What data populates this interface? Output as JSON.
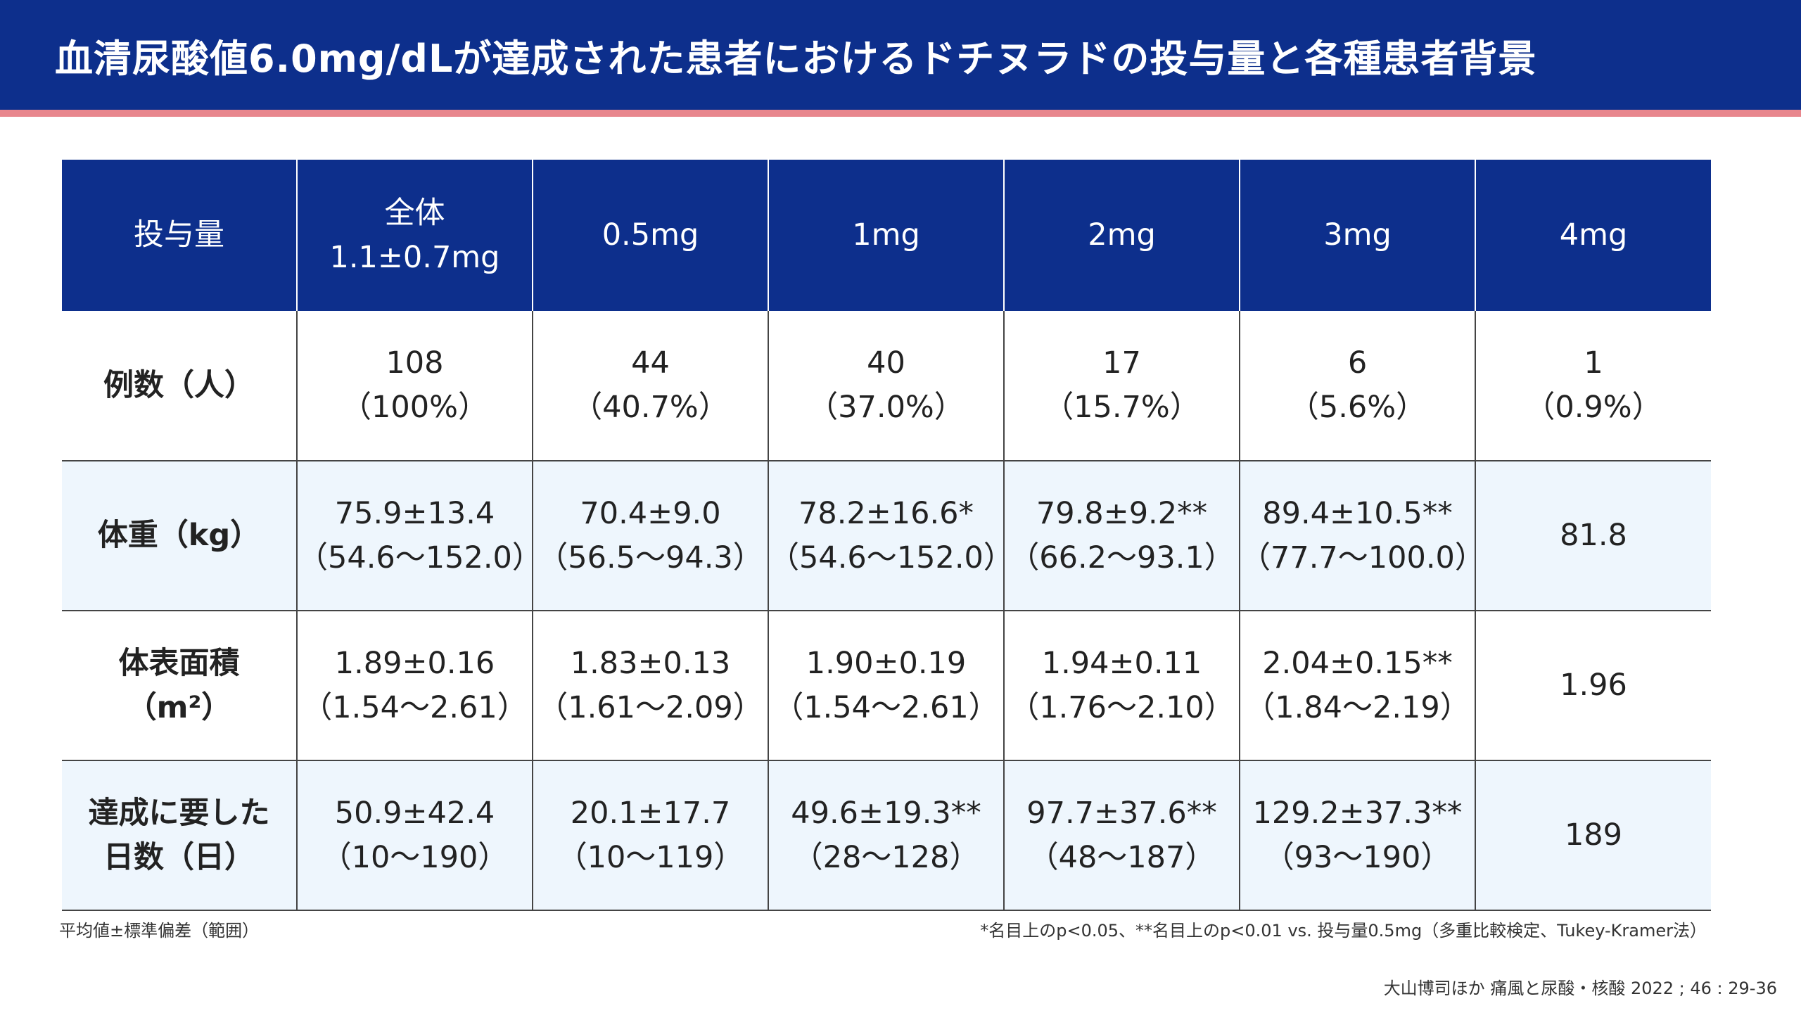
{
  "title": "血清尿酸値6.0mg/dLが達成された患者におけるドチヌラドの投与量と各種患者背景",
  "colors": {
    "header_bg": "#0d2f8c",
    "accent_rule": "#e8868d",
    "shaded_row_bg": "#eef6fd",
    "grid_line": "#444444"
  },
  "table": {
    "header": [
      {
        "line1": "投与量",
        "line2": ""
      },
      {
        "line1": "全体",
        "line2": "1.1±0.7mg"
      },
      {
        "line1": "0.5mg",
        "line2": ""
      },
      {
        "line1": "1mg",
        "line2": ""
      },
      {
        "line1": "2mg",
        "line2": ""
      },
      {
        "line1": "3mg",
        "line2": ""
      },
      {
        "line1": "4mg",
        "line2": ""
      }
    ],
    "rows": [
      {
        "label1": "例数（人）",
        "label2": "",
        "cells": [
          {
            "line1": "108",
            "line2": "（100%）"
          },
          {
            "line1": "44",
            "line2": "（40.7%）"
          },
          {
            "line1": "40",
            "line2": "（37.0%）"
          },
          {
            "line1": "17",
            "line2": "（15.7%）"
          },
          {
            "line1": "6",
            "line2": "（5.6%）"
          },
          {
            "line1": "1",
            "line2": "（0.9%）"
          }
        ]
      },
      {
        "label1": "体重（kg）",
        "label2": "",
        "cells": [
          {
            "line1": "75.9±13.4",
            "line2": "（54.6〜152.0）"
          },
          {
            "line1": "70.4±9.0",
            "line2": "（56.5〜94.3）"
          },
          {
            "line1": "78.2±16.6*",
            "line2": "（54.6〜152.0）"
          },
          {
            "line1": "79.8±9.2**",
            "line2": "（66.2〜93.1）"
          },
          {
            "line1": "89.4±10.5**",
            "line2": "（77.7〜100.0）"
          },
          {
            "line1": "81.8",
            "line2": ""
          }
        ]
      },
      {
        "label1": "体表面積",
        "label2": "（m²）",
        "cells": [
          {
            "line1": "1.89±0.16",
            "line2": "（1.54〜2.61）"
          },
          {
            "line1": "1.83±0.13",
            "line2": "（1.61〜2.09）"
          },
          {
            "line1": "1.90±0.19",
            "line2": "（1.54〜2.61）"
          },
          {
            "line1": "1.94±0.11",
            "line2": "（1.76〜2.10）"
          },
          {
            "line1": "2.04±0.15**",
            "line2": "（1.84〜2.19）"
          },
          {
            "line1": "1.96",
            "line2": ""
          }
        ]
      },
      {
        "label1": "達成に要した",
        "label2": "日数（日）",
        "cells": [
          {
            "line1": "50.9±42.4",
            "line2": "（10〜190）"
          },
          {
            "line1": "20.1±17.7",
            "line2": "（10〜119）"
          },
          {
            "line1": "49.6±19.3**",
            "line2": "（28〜128）"
          },
          {
            "line1": "97.7±37.6**",
            "line2": "（48〜187）"
          },
          {
            "line1": "129.2±37.3**",
            "line2": "（93〜190）"
          },
          {
            "line1": "189",
            "line2": ""
          }
        ]
      }
    ]
  },
  "footnote_left": "平均値±標準偏差（範囲）",
  "footnote_right": "*名目上のp<0.05、**名目上のp<0.01 vs. 投与量0.5mg（多重比較検定、Tukey-Kramer法）",
  "citation": "大山博司ほか 痛風と尿酸・核酸 2022 ; 46 : 29-36"
}
